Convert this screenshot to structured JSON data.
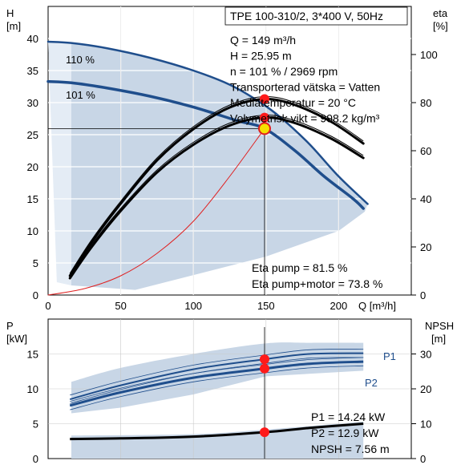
{
  "chart_data": [
    {
      "type": "line",
      "title": "TPE 100-310/2, 3*400 V, 50Hz",
      "xlabel": "Q [m³/h]",
      "ylabel_left": "H\n[m]",
      "ylabel_right": "eta\n[%]",
      "xlim": [
        0,
        250
      ],
      "ylim_left": [
        0,
        45
      ],
      "ylim_right": [
        0,
        120
      ],
      "x_ticks": [
        0,
        50,
        100,
        150,
        200
      ],
      "y_ticks_left": [
        0,
        5,
        10,
        15,
        20,
        25,
        30,
        35,
        40
      ],
      "y_ticks_right": [
        0,
        20,
        40,
        60,
        80,
        100
      ],
      "grid": true,
      "info_lines": [
        "Q = 149 m³/h",
        "H = 25.95 m",
        "n = 101 % / 2969 rpm",
        "Transporterad vätska = Vatten",
        "Mediatemperatur = 20 °C",
        "Volymetrisk vikt = 998.2 kg/m³"
      ],
      "eta_annotations": [
        "Eta pump = 81.5 %",
        "Eta pump+motor = 73.8 %"
      ],
      "series": [
        {
          "name": "110 %",
          "axis": "left",
          "color": "#1f4e8c",
          "x": [
            0,
            16,
            40,
            70,
            100,
            125,
            145,
            160,
            180,
            200,
            220
          ],
          "y": [
            39.5,
            39.3,
            38.5,
            37,
            35,
            32.8,
            30.2,
            27.7,
            23.5,
            18.5,
            14.2
          ]
        },
        {
          "name": "101 %",
          "axis": "left",
          "color": "#1f4e8c",
          "x": [
            0,
            16,
            40,
            70,
            100,
            130,
            149,
            170,
            190,
            210,
            217
          ],
          "y": [
            33.3,
            33.1,
            32.3,
            31,
            29.3,
            27.2,
            25.95,
            22.5,
            18.5,
            15,
            13.5
          ]
        },
        {
          "name": "",
          "axis": "right",
          "color": "#000000",
          "x": [
            15,
            30,
            50,
            75,
            100,
            125,
            149,
            170,
            195,
            217
          ],
          "y": [
            8,
            22,
            38,
            56,
            69,
            78,
            81.5,
            79,
            72,
            63
          ]
        },
        {
          "name": "",
          "axis": "right",
          "color": "#000000",
          "x": [
            15,
            30,
            50,
            75,
            100,
            125,
            149,
            170,
            195,
            217
          ],
          "y": [
            7,
            20,
            35,
            51,
            62.5,
            70.5,
            73.8,
            71.5,
            65,
            57
          ]
        },
        {
          "name": "",
          "axis": "left",
          "color": "#e02020",
          "x": [
            0,
            25,
            50,
            75,
            100,
            125,
            149
          ],
          "y": [
            0,
            1,
            3,
            6.5,
            11.5,
            18.5,
            25.95
          ]
        }
      ],
      "markers": [
        {
          "x": 149,
          "y": 25.95,
          "axis": "left",
          "color": "#f5e000"
        },
        {
          "x": 149,
          "y": 81.5,
          "axis": "right",
          "color": "#ff1a1a"
        },
        {
          "x": 149,
          "y": 73.8,
          "axis": "right",
          "color": "#ff1a1a"
        }
      ],
      "region_color": "#c8d6e6"
    },
    {
      "type": "line",
      "xlabel": "",
      "ylabel_left": "P\n[kW]",
      "ylabel_right": "NPSH\n[m]",
      "xlim": [
        0,
        250
      ],
      "ylim_left": [
        0,
        20
      ],
      "ylim_right": [
        0,
        40
      ],
      "y_ticks_left": [
        0,
        5,
        10,
        15
      ],
      "y_ticks_right": [
        0,
        10,
        20,
        30
      ],
      "grid": true,
      "info_lines": [
        "P1 = 14.24 kW",
        "P2 = 12.9 kW",
        "NPSH = 7.56 m"
      ],
      "series": [
        {
          "name": "P1",
          "axis": "left",
          "color": "#1f4e8c",
          "x": [
            15,
            50,
            100,
            149,
            180,
            217
          ],
          "y": [
            8.5,
            10.5,
            12.8,
            14.24,
            15,
            15.1
          ]
        },
        {
          "name": "P2",
          "axis": "left",
          "color": "#1f4e8c",
          "x": [
            15,
            50,
            100,
            149,
            180,
            217
          ],
          "y": [
            7.6,
            9.5,
            11.6,
            12.9,
            13.6,
            13.9
          ]
        },
        {
          "name": "",
          "axis": "right",
          "color": "#000000",
          "x": [
            15,
            50,
            100,
            149,
            180,
            217
          ],
          "y": [
            5.6,
            5.8,
            6.3,
            7.56,
            8.8,
            10
          ]
        }
      ],
      "markers": [
        {
          "x": 149,
          "y": 14.24,
          "axis": "left",
          "color": "#ff1a1a"
        },
        {
          "x": 149,
          "y": 12.9,
          "axis": "left",
          "color": "#ff1a1a"
        },
        {
          "x": 149,
          "y": 7.56,
          "axis": "right",
          "color": "#ff1a1a"
        }
      ],
      "region_color": "#c8d6e6"
    }
  ]
}
